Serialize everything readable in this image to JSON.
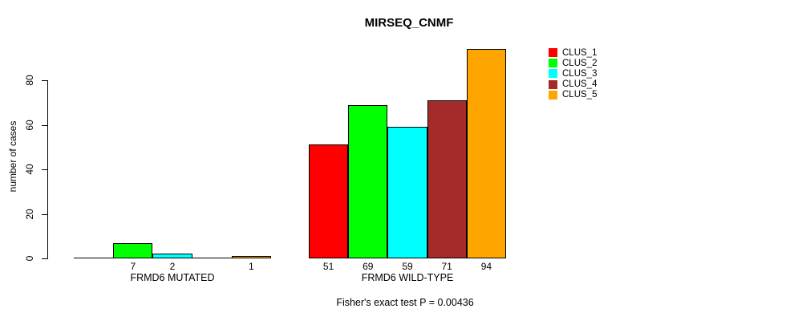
{
  "title": "MIRSEQ_CNMF",
  "y_axis": {
    "label": "number of cases"
  },
  "caption": "Fisher's exact test P = 0.00436",
  "legend": {
    "items": [
      {
        "label": "CLUS_1",
        "color": "#ff0000"
      },
      {
        "label": "CLUS_2",
        "color": "#00ff00"
      },
      {
        "label": "CLUS_3",
        "color": "#00ffff"
      },
      {
        "label": "CLUS_4",
        "color": "#a52a2a"
      },
      {
        "label": "CLUS_5",
        "color": "#ffa500"
      }
    ]
  },
  "chart_data": {
    "type": "bar",
    "title": "MIRSEQ_CNMF",
    "ylabel": "number of cases",
    "xlabel": "",
    "ylim": [
      0,
      95
    ],
    "yticks": [
      0,
      20,
      40,
      60,
      80
    ],
    "grid": false,
    "legend_position": "right",
    "series": [
      "CLUS_1",
      "CLUS_2",
      "CLUS_3",
      "CLUS_4",
      "CLUS_5"
    ],
    "series_colors": [
      "#ff0000",
      "#00ff00",
      "#00ffff",
      "#a52a2a",
      "#ffa500"
    ],
    "groups": [
      {
        "label": "FRMD6 MUTATED",
        "values": [
          0,
          7,
          2,
          0,
          1
        ],
        "bar_labels": [
          "",
          "7",
          "2",
          "",
          "1"
        ]
      },
      {
        "label": "FRMD6 WILD-TYPE",
        "values": [
          51,
          69,
          59,
          71,
          94
        ],
        "bar_labels": [
          "51",
          "69",
          "59",
          "71",
          "94"
        ]
      }
    ],
    "annotation": "Fisher's exact test P = 0.00436"
  }
}
